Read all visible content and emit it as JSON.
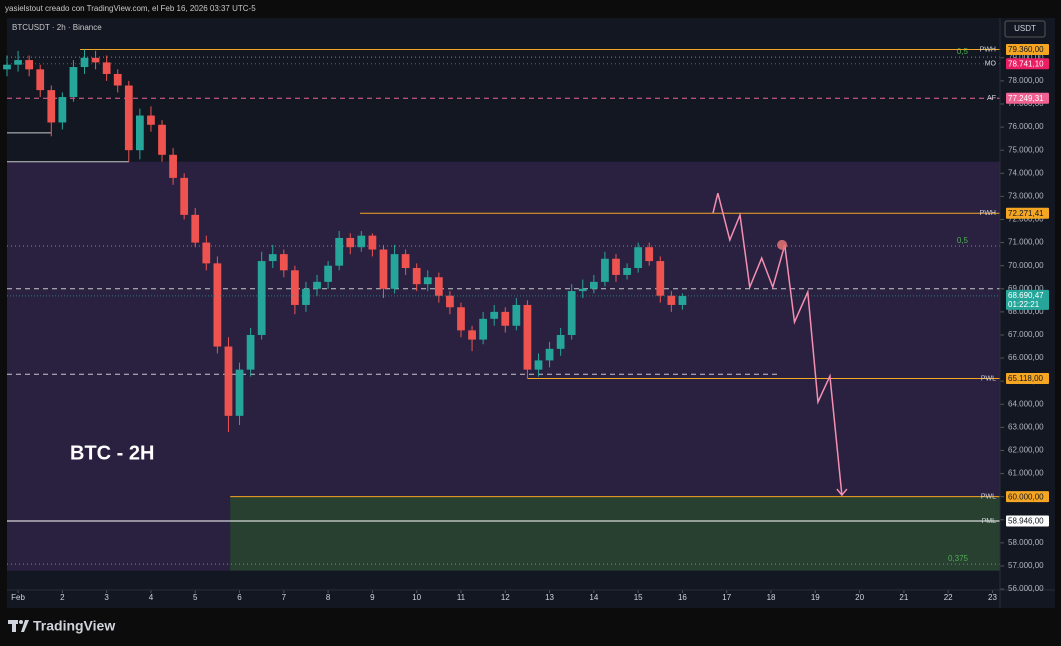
{
  "header": {
    "credit": "yasielstout creado con TradingView.com, el Feb 16, 2026 03:37 UTC-5",
    "brand": "TradingView"
  },
  "chart_data": {
    "type": "candlestick",
    "title": "BTCUSDT · 2h · Binance",
    "currency": "USDT",
    "annotation": "BTC - 2H",
    "colors": {
      "up": "#26a69a",
      "down": "#ef5350"
    },
    "xlim": [
      0.75,
      23.17
    ],
    "ylim": [
      55960,
      79640
    ],
    "xticks": [
      {
        "value": 1,
        "label": "Feb"
      },
      2,
      3,
      4,
      5,
      6,
      7,
      8,
      9,
      10,
      11,
      12,
      13,
      14,
      15,
      16,
      17,
      18,
      19,
      20,
      21,
      22,
      23
    ],
    "yticks": [
      {
        "value": 56000,
        "label": "56.000,00"
      },
      {
        "value": 57000,
        "label": "57.000,00"
      },
      {
        "value": 58000,
        "label": "58.000,00"
      },
      {
        "value": 59000,
        "label": "59.000,00"
      },
      {
        "value": 60000,
        "label": "60.000,00"
      },
      {
        "value": 61000,
        "label": "61.000,00"
      },
      {
        "value": 62000,
        "label": "62.000,00"
      },
      {
        "value": 63000,
        "label": "63.000,00"
      },
      {
        "value": 64000,
        "label": "64.000,00"
      },
      {
        "value": 65000,
        "label": "65.000,00"
      },
      {
        "value": 66000,
        "label": "66.000,00"
      },
      {
        "value": 67000,
        "label": "67.000,00"
      },
      {
        "value": 68000,
        "label": "68.000,00"
      },
      {
        "value": 69000,
        "label": "69.000,00"
      },
      {
        "value": 70000,
        "label": "70.000,00"
      },
      {
        "value": 71000,
        "label": "71.000,00"
      },
      {
        "value": 72000,
        "label": "72.000,00"
      },
      {
        "value": 73000,
        "label": "73.000,00"
      },
      {
        "value": 74000,
        "label": "74.000,00"
      },
      {
        "value": 75000,
        "label": "75.000,00"
      },
      {
        "value": 76000,
        "label": "76.000,00"
      },
      {
        "value": 77000,
        "label": "77.000,00"
      },
      {
        "value": 78000,
        "label": "78.000,00"
      },
      {
        "value": 79000,
        "label": "79.000,00"
      }
    ],
    "x": [
      0.75,
      1,
      1.25,
      1.5,
      1.75,
      2,
      2.25,
      2.5,
      2.75,
      3,
      3.25,
      3.5,
      3.75,
      4,
      4.25,
      4.5,
      4.75,
      5,
      5.25,
      5.5,
      5.75,
      6,
      6.25,
      6.5,
      6.75,
      7,
      7.25,
      7.5,
      7.75,
      8,
      8.25,
      8.5,
      8.75,
      9,
      9.25,
      9.5,
      9.75,
      10,
      10.25,
      10.5,
      10.75,
      11,
      11.25,
      11.5,
      11.75,
      12,
      12.25,
      12.5,
      12.75,
      13,
      13.25,
      13.5,
      13.75,
      14,
      14.25,
      14.5,
      14.75,
      15,
      15.25,
      15.5,
      15.75,
      16
    ],
    "candles": [
      [
        78500,
        79100,
        78200,
        78700
      ],
      [
        78700,
        79300,
        78400,
        78900
      ],
      [
        78900,
        79100,
        78200,
        78500
      ],
      [
        78500,
        78700,
        77300,
        77600
      ],
      [
        77600,
        77800,
        75600,
        76200
      ],
      [
        76200,
        77500,
        75900,
        77300
      ],
      [
        77300,
        78900,
        77100,
        78600
      ],
      [
        78600,
        79360,
        78300,
        79000
      ],
      [
        79000,
        79300,
        78500,
        78800
      ],
      [
        78800,
        79100,
        78000,
        78300
      ],
      [
        78300,
        78500,
        77500,
        77800
      ],
      [
        77800,
        78000,
        74500,
        75000
      ],
      [
        75000,
        76800,
        74600,
        76500
      ],
      [
        76500,
        76900,
        75800,
        76100
      ],
      [
        76100,
        76300,
        74500,
        74800
      ],
      [
        74800,
        75100,
        73500,
        73800
      ],
      [
        73800,
        74000,
        72000,
        72200
      ],
      [
        72200,
        72500,
        70800,
        71000
      ],
      [
        71000,
        71300,
        69800,
        70100
      ],
      [
        70100,
        70400,
        66200,
        66500
      ],
      [
        66500,
        66900,
        62800,
        63500
      ],
      [
        63500,
        65800,
        63100,
        65500
      ],
      [
        65500,
        67300,
        65200,
        67000
      ],
      [
        67000,
        70600,
        66800,
        70200
      ],
      [
        70200,
        70900,
        69900,
        70500
      ],
      [
        70500,
        70700,
        69500,
        69800
      ],
      [
        69800,
        70000,
        67900,
        68300
      ],
      [
        68300,
        69300,
        68000,
        69000
      ],
      [
        69000,
        69600,
        68700,
        69300
      ],
      [
        69300,
        70200,
        69000,
        70000
      ],
      [
        70000,
        71500,
        69800,
        71200
      ],
      [
        71200,
        71400,
        70500,
        70800
      ],
      [
        70800,
        71500,
        70600,
        71300
      ],
      [
        71300,
        71400,
        70400,
        70700
      ],
      [
        70700,
        70900,
        68600,
        69000
      ],
      [
        69000,
        70900,
        68800,
        70500
      ],
      [
        70500,
        70700,
        69600,
        69900
      ],
      [
        69900,
        70100,
        68900,
        69200
      ],
      [
        69200,
        69800,
        68900,
        69500
      ],
      [
        69500,
        69700,
        68400,
        68700
      ],
      [
        68700,
        68900,
        67900,
        68200
      ],
      [
        68200,
        68400,
        66900,
        67200
      ],
      [
        67200,
        67400,
        66300,
        66800
      ],
      [
        66800,
        68000,
        66600,
        67700
      ],
      [
        67700,
        68300,
        67400,
        68000
      ],
      [
        68000,
        68200,
        67100,
        67400
      ],
      [
        67400,
        68600,
        67200,
        68300
      ],
      [
        68300,
        68500,
        65100,
        65500
      ],
      [
        65500,
        66200,
        65200,
        65900
      ],
      [
        65900,
        66700,
        65600,
        66400
      ],
      [
        66400,
        67300,
        66100,
        67000
      ],
      [
        67000,
        69200,
        66800,
        68900
      ],
      [
        68900,
        69400,
        68600,
        69000
      ],
      [
        69000,
        69600,
        68800,
        69300
      ],
      [
        69300,
        70600,
        69100,
        70300
      ],
      [
        70300,
        70500,
        69300,
        69600
      ],
      [
        69600,
        70100,
        69400,
        69900
      ],
      [
        69900,
        71000,
        69700,
        70800
      ],
      [
        70800,
        71000,
        70000,
        70200
      ],
      [
        70200,
        70400,
        68400,
        68700
      ],
      [
        68700,
        68900,
        68000,
        68300
      ],
      [
        68300,
        68800,
        68100,
        68690
      ]
    ],
    "zones": [
      {
        "from": 56800,
        "to": 74500,
        "start": 0.75,
        "color": "#2a2140"
      },
      {
        "from": 56800,
        "to": 60000,
        "start": 5.79,
        "color": "#28402f"
      }
    ],
    "levels": [
      {
        "name": "PWH",
        "value": 79360,
        "value_label": "79.360,00",
        "start": 2.4,
        "color": "#f5a623",
        "style": "solid"
      },
      {
        "name": "MO",
        "value": 78741.1,
        "value_label": "78.741,10",
        "start": 0.75,
        "color": "#e91e63",
        "style": "dotted"
      },
      {
        "name": "AF",
        "value": 77249.31,
        "value_label": "77.249,31",
        "start": 0.75,
        "color": "#f06292",
        "style": "dashed"
      },
      {
        "name": "PWH",
        "value": 72271.41,
        "value_label": "72.271,41",
        "start": 8.72,
        "color": "#f5a623",
        "style": "solid"
      },
      {
        "name": "PWL",
        "value": 65118,
        "value_label": "65.118,00",
        "start": 12.51,
        "color": "#f5a623",
        "style": "solid"
      },
      {
        "name": "PWL",
        "value": 60000,
        "value_label": "60.000,00",
        "start": 5.79,
        "color": "#f5a623",
        "style": "solid"
      },
      {
        "name": "PML",
        "value": 58946,
        "value_label": "58.946,00",
        "start": 0.75,
        "color": "#ffffff",
        "style": "solid"
      }
    ],
    "fibs": [
      {
        "label": "0,5",
        "value": 79030
      },
      {
        "label": "0,5",
        "value": 70850
      },
      {
        "label": "0,375",
        "value": 57080
      }
    ],
    "fib_color": "#4caf50",
    "lines": [
      {
        "value": 75750,
        "from": 0.75,
        "to": 1.75,
        "style": "solid"
      },
      {
        "value": 74500,
        "from": 0.75,
        "to": 3.5,
        "style": "solid"
      },
      {
        "value": 69000,
        "from": 0.75,
        "to": 23.17,
        "style": "dashed"
      },
      {
        "value": 65300,
        "from": 0.75,
        "to": 18.2,
        "style": "dashed"
      }
    ],
    "last_price": {
      "value": 68690.47,
      "value_label": "68.690,47",
      "countdown": "01:22:21",
      "color": "#26a69a"
    },
    "projection": {
      "x": [
        16.69,
        16.8,
        17.07,
        17.3,
        17.52,
        17.79,
        18.04,
        18.31,
        18.53,
        18.83,
        19.06,
        19.33,
        19.6
      ],
      "y": [
        72280,
        73140,
        71110,
        72190,
        69070,
        70330,
        69070,
        70890,
        67560,
        68860,
        64100,
        65220,
        60070
      ],
      "color": "#f48fb1",
      "point": {
        "x": 18.25,
        "y": 70900
      }
    }
  }
}
